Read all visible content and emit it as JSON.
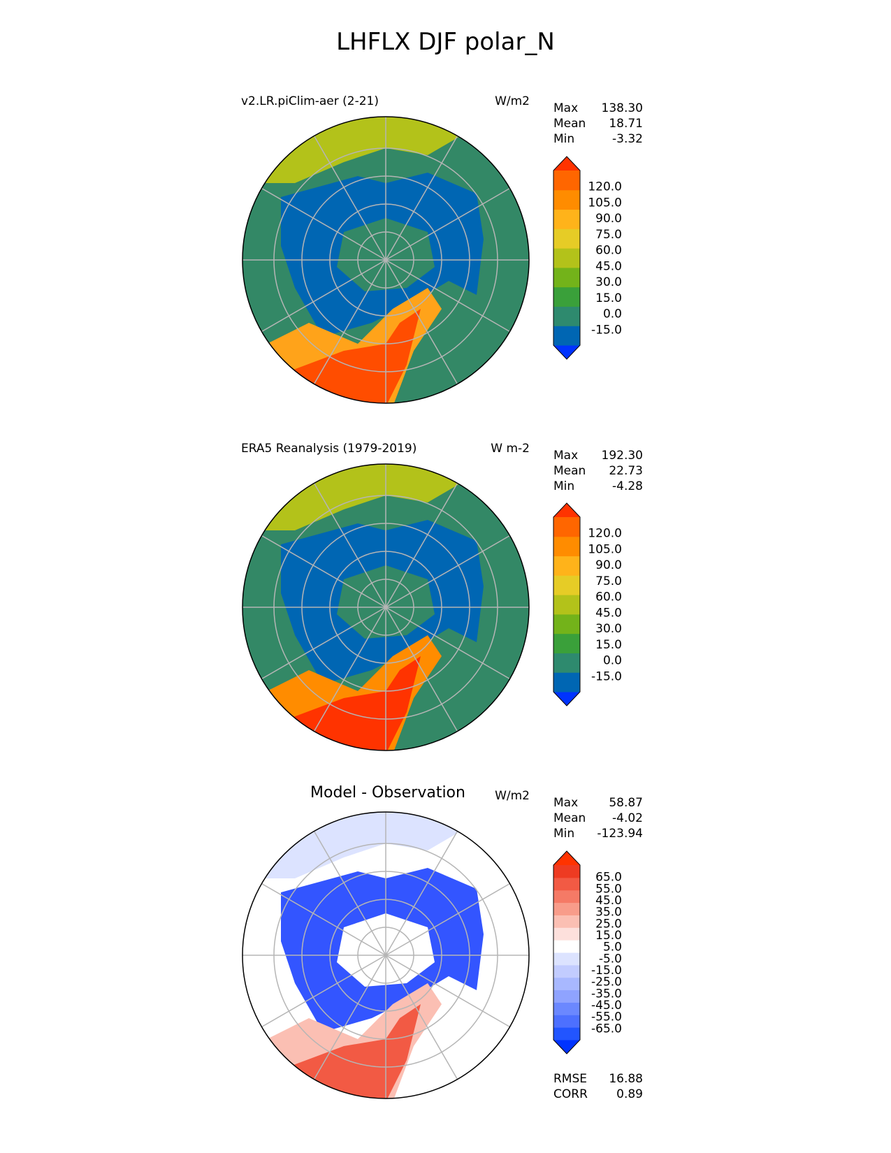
{
  "title": "LHFLX DJF polar_N",
  "panels": [
    {
      "id": "model",
      "title": "v2.LR.piClim-aer (2-21)",
      "title_style": "left",
      "units": "W/m2",
      "stats": [
        {
          "label": "Max",
          "value": "138.30"
        },
        {
          "label": "Mean",
          "value": "18.71"
        },
        {
          "label": "Min",
          "value": "-3.32"
        }
      ],
      "colorbar": {
        "labels": [
          "120.0",
          "105.0",
          "90.0",
          "75.0",
          "60.0",
          "45.0",
          "30.0",
          "15.0",
          "0.0",
          "-15.0"
        ],
        "colors": [
          "#0033ff",
          "#0066b3",
          "#2e8a6e",
          "#3aa03a",
          "#73b31a",
          "#b3c21a",
          "#e6cc26",
          "#ffb31a",
          "#ff8c00",
          "#ff6600",
          "#ff3300"
        ]
      },
      "map_colors": {
        "ocean": "#338866",
        "low": "#0066b3",
        "mid": "#b3c21a",
        "high": "#ffa31a",
        "max": "#ff4d00"
      }
    },
    {
      "id": "obs",
      "title": "ERA5 Reanalysis (1979-2019)",
      "title_style": "left",
      "units": "W m-2",
      "stats": [
        {
          "label": "Max",
          "value": "192.30"
        },
        {
          "label": "Mean",
          "value": "22.73"
        },
        {
          "label": "Min",
          "value": "-4.28"
        }
      ],
      "colorbar": {
        "labels": [
          "120.0",
          "105.0",
          "90.0",
          "75.0",
          "60.0",
          "45.0",
          "30.0",
          "15.0",
          "0.0",
          "-15.0"
        ],
        "colors": [
          "#0033ff",
          "#0066b3",
          "#2e8a6e",
          "#3aa03a",
          "#73b31a",
          "#b3c21a",
          "#e6cc26",
          "#ffb31a",
          "#ff8c00",
          "#ff6600",
          "#ff3300"
        ]
      },
      "map_colors": {
        "ocean": "#338866",
        "low": "#0066b3",
        "mid": "#b3c21a",
        "high": "#ff8c00",
        "max": "#ff3300"
      }
    },
    {
      "id": "diff",
      "title": "Model - Observation",
      "title_style": "center",
      "units": "W/m2",
      "stats": [
        {
          "label": "Max",
          "value": "58.87"
        },
        {
          "label": "Mean",
          "value": "-4.02"
        },
        {
          "label": "Min",
          "value": "-123.94"
        }
      ],
      "colorbar": {
        "labels": [
          "65.0",
          "55.0",
          "45.0",
          "35.0",
          "25.0",
          "15.0",
          "5.0",
          "-5.0",
          "-15.0",
          "-25.0",
          "-35.0",
          "-45.0",
          "-55.0",
          "-65.0"
        ],
        "colors": [
          "#0033ff",
          "#2255ff",
          "#4d70ff",
          "#6b88ff",
          "#8fa3ff",
          "#a8b8ff",
          "#c2ccff",
          "#dce3ff",
          "#ffffff",
          "#fde0dc",
          "#fbbfb3",
          "#f89c8a",
          "#f57a66",
          "#f25a44",
          "#ee3b22",
          "#ff3300"
        ]
      },
      "extra_stats": [
        {
          "label": "RMSE",
          "value": "16.88"
        },
        {
          "label": "CORR",
          "value": "0.89"
        }
      ],
      "map_colors": {
        "ocean": "#ffffff",
        "low": "#3355ff",
        "mid": "#dce3ff",
        "high": "#fbbfb3",
        "max": "#f25a44"
      }
    }
  ]
}
